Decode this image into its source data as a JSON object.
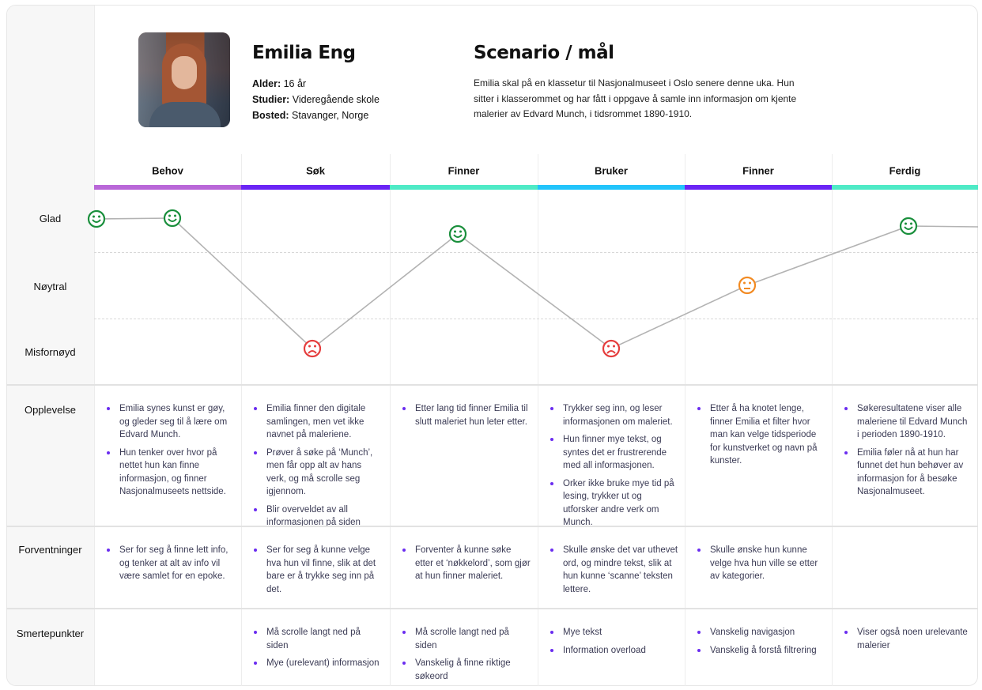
{
  "persona": {
    "name": "Emilia Eng",
    "facts": [
      {
        "label": "Alder:",
        "value": " 16 år"
      },
      {
        "label": "Studier:",
        "value": " Videregående skole"
      },
      {
        "label": "Bosted:",
        "value": " Stavanger, Norge"
      }
    ]
  },
  "scenario": {
    "title": "Scenario / mål",
    "text": "Emilia skal på en klassetur til Nasjonalmuseet i Oslo senere denne uka. Hun sitter i klasserommet og har fått i oppgave å samle inn informasjon om kjente malerier av Edvard Munch, i tidsrommet 1890-1910."
  },
  "stages": [
    {
      "label": "Behov",
      "color": "#b967d8"
    },
    {
      "label": "Søk",
      "color": "#6a24f5"
    },
    {
      "label": "Finner",
      "color": "#4eeac6"
    },
    {
      "label": "Bruker",
      "color": "#22c4fb"
    },
    {
      "label": "Finner",
      "color": "#6a24f5"
    },
    {
      "label": "Ferdig",
      "color": "#4eeac6"
    }
  ],
  "emotion_levels": [
    "Glad",
    "Nøytral",
    "Misfornøyd"
  ],
  "emotion_colors": {
    "Glad": "#1a8f3c",
    "Nøytral": "#f28a22",
    "Misfornøyd": "#e53d3d"
  },
  "emotion_points": [
    "Glad",
    "Glad",
    "Misfornøyd",
    "Glad",
    "Misfornøyd",
    "Nøytral",
    "Glad"
  ],
  "rows": [
    {
      "label": "Opplevelse",
      "cells": [
        [
          "Emilia synes kunst er gøy, og gleder seg til å lære om Edvard Munch.",
          "Hun tenker over hvor på nettet hun kan finne informasjon, og finner Nasjonalmuseets nettside."
        ],
        [
          "Emilia finner den digitale samlingen, men vet ikke navnet på maleriene.",
          "Prøver å søke på ‘Munch’, men får opp alt av hans verk, og må scrolle seg igjennom.",
          "Blir overveldet av all informasjonen på siden"
        ],
        [
          "Etter lang tid finner Emilia til slutt maleriet hun leter etter."
        ],
        [
          "Trykker seg inn, og leser informasjonen om maleriet.",
          "Hun finner mye tekst, og syntes det er frustrerende med all informasjonen.",
          "Orker ikke bruke mye tid på lesing, trykker ut og utforsker andre verk om Munch."
        ],
        [
          "Etter å ha knotet lenge, finner Emilia et filter hvor man kan velge tidsperiode for kunstverket og navn på kunster."
        ],
        [
          "Søkeresultatene viser alle maleriene til Edvard Munch i perioden 1890-1910.",
          "Emilia føler nå at hun har funnet det hun behøver av informasjon for å besøke Nasjonalmuseet."
        ]
      ]
    },
    {
      "label": "Forventninger",
      "cells": [
        [
          "Ser for seg å finne lett info, og tenker at alt av info vil være samlet for en epoke."
        ],
        [
          "Ser for seg å kunne velge hva hun vil finne, slik at det bare er å trykke seg inn på det."
        ],
        [
          "Forventer å kunne søke etter et ‘nøkkelord’, som gjør at hun finner maleriet."
        ],
        [
          "Skulle ønske det var uthevet ord, og mindre tekst, slik at hun kunne ‘scanne’ teksten lettere."
        ],
        [
          "Skulle ønske hun kunne velge hva hun ville se etter av kategorier."
        ],
        []
      ]
    },
    {
      "label": "Smertepunkter",
      "cells": [
        [],
        [
          "Må scrolle langt ned på siden",
          "Mye (urelevant) informasjon"
        ],
        [
          "Må scrolle langt ned på siden",
          "Vanskelig å finne riktige søkeord"
        ],
        [
          "Mye tekst",
          "Information overload"
        ],
        [
          "Vanskelig navigasjon",
          "Vanskelig å forstå filtrering"
        ],
        [
          "Viser også noen urelevante malerier"
        ]
      ]
    }
  ]
}
